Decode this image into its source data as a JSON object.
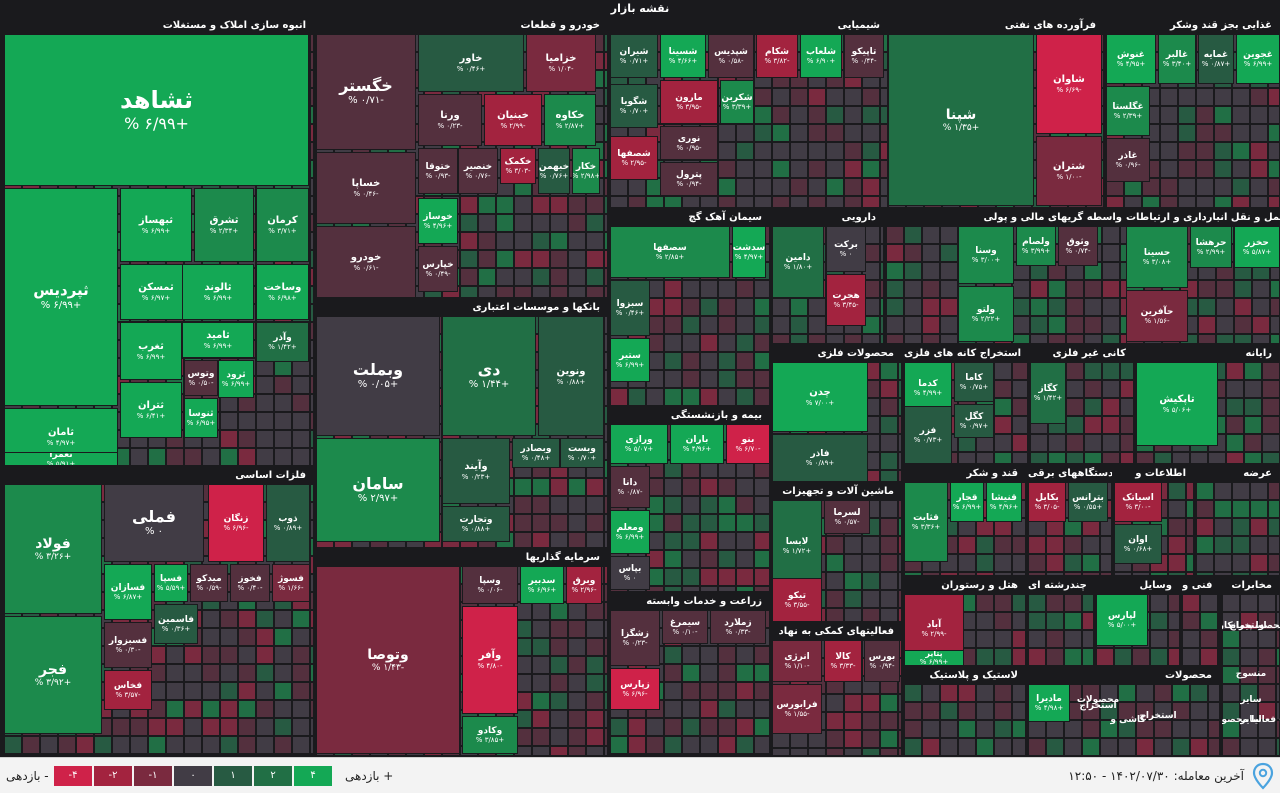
{
  "map_title": "نقشه بازار",
  "colors": {
    "up4": "#14a855",
    "up3": "#1c8a4c",
    "up2": "#216f45",
    "up1": "#275a42",
    "flat": "#413c45",
    "down1": "#54303e",
    "down2": "#7a2a3f",
    "down3": "#a3233f",
    "down4": "#cf2249"
  },
  "chart_data": {
    "type": "treemap",
    "sectors": [
      {
        "name": "انبوه سازی املاک و مستغلات",
        "tiles": [
          {
            "symbol": "ثشاهد",
            "change": "+۶/۹۹ %",
            "pct": 6.99
          },
          {
            "symbol": "ثپردیس",
            "change": "+۶/۹۹ %",
            "pct": 6.99
          },
          {
            "symbol": "ثامان",
            "change": "+۴/۹۷ %",
            "pct": 4.97
          },
          {
            "symbol": "ثعمرا",
            "change": "+۵/۹۱ %",
            "pct": 5.91
          },
          {
            "symbol": "ثبهساز",
            "change": "+۶/۹۹ %",
            "pct": 6.99
          },
          {
            "symbol": "ثشرق",
            "change": "+۲/۳۴ %",
            "pct": 2.34
          },
          {
            "symbol": "کرمان",
            "change": "+۳/۷۱ %",
            "pct": 3.71
          },
          {
            "symbol": "ثمسکن",
            "change": "+۶/۹۷ %",
            "pct": 6.97
          },
          {
            "symbol": "ثالوند",
            "change": "+۶/۹۹ %",
            "pct": 6.99
          },
          {
            "symbol": "وساخت",
            "change": "+۶/۹۸ %",
            "pct": 6.98
          },
          {
            "symbol": "ثغرب",
            "change": "+۶/۹۹ %",
            "pct": 6.99
          },
          {
            "symbol": "ثامید",
            "change": "+۶/۹۹ %",
            "pct": 6.99
          },
          {
            "symbol": "وآذر",
            "change": "+۱/۴۲ %",
            "pct": 1.42
          },
          {
            "symbol": "وتوس",
            "change": "-۰/۵۰ %",
            "pct": -0.5
          },
          {
            "symbol": "ثرود",
            "change": "+۶/۹۹ %",
            "pct": 6.99
          },
          {
            "symbol": "ثتران",
            "change": "+۶/۴۱ %",
            "pct": 6.41
          },
          {
            "symbol": "ثنوسا",
            "change": "+۶/۹۵ %",
            "pct": 6.95
          }
        ]
      },
      {
        "name": "فلزات اساسی",
        "tiles": [
          {
            "symbol": "فولاد",
            "change": "+۳/۲۶ %",
            "pct": 3.26
          },
          {
            "symbol": "فجر",
            "change": "+۳/۹۲ %",
            "pct": 3.92
          },
          {
            "symbol": "فملی",
            "change": "۰ %",
            "pct": 0
          },
          {
            "symbol": "زنگان",
            "change": "-۶/۹۶ %",
            "pct": -6.96
          },
          {
            "symbol": "ذوب",
            "change": "+۰/۸۹ %",
            "pct": 0.89
          },
          {
            "symbol": "فسازان",
            "change": "+۶/۸۷ %",
            "pct": 6.87
          },
          {
            "symbol": "فسپا",
            "change": "+۵/۵۹ %",
            "pct": 5.59
          },
          {
            "symbol": "میدکو",
            "change": "-۰/۵۹ %",
            "pct": -0.59
          },
          {
            "symbol": "فخوز",
            "change": "-۰/۴۰ %",
            "pct": -0.4
          },
          {
            "symbol": "فسوژ",
            "change": "-۱/۶۶ %",
            "pct": -1.66
          },
          {
            "symbol": "فسبزوار",
            "change": "-۰/۳۰ %",
            "pct": -0.3
          },
          {
            "symbol": "فاسمین",
            "change": "+۰/۳۶ %",
            "pct": 0.36
          },
          {
            "symbol": "فخاس",
            "change": "-۳/۵۷ %",
            "pct": -3.57
          }
        ]
      },
      {
        "name": "خودرو و قطعات",
        "tiles": [
          {
            "symbol": "خگستر",
            "change": "-۰/۷۱ %",
            "pct": -0.71
          },
          {
            "symbol": "خاور",
            "change": "+۰/۴۶ %",
            "pct": 0.46
          },
          {
            "symbol": "خزامیا",
            "change": "-۱/۰۴ %",
            "pct": -1.04
          },
          {
            "symbol": "ورنا",
            "change": "-۰/۲۳ %",
            "pct": -0.23
          },
          {
            "symbol": "خبنیان",
            "change": "-۲/۹۹ %",
            "pct": -2.99
          },
          {
            "symbol": "خکاوه",
            "change": "+۲/۸۷ %",
            "pct": 2.87
          },
          {
            "symbol": "خساپا",
            "change": "-۰/۴۶ %",
            "pct": -0.46
          },
          {
            "symbol": "ختوقا",
            "change": "-۰/۹۳ %",
            "pct": -0.93
          },
          {
            "symbol": "خنصیر",
            "change": "-۰/۷۶ %",
            "pct": -0.76
          },
          {
            "symbol": "خکمک",
            "change": "-۳/۰۳ %",
            "pct": -3.03
          },
          {
            "symbol": "خبهمن",
            "change": "+۰/۷۶ %",
            "pct": 0.76
          },
          {
            "symbol": "خکار",
            "change": "+۲/۹۸ %",
            "pct": 2.98
          },
          {
            "symbol": "خوساز",
            "change": "+۴/۹۶ %",
            "pct": 4.96
          },
          {
            "symbol": "خودرو",
            "change": "-۰/۶۱ %",
            "pct": -0.61
          },
          {
            "symbol": "خپارس",
            "change": "-۰/۴۹ %",
            "pct": -0.49
          }
        ]
      },
      {
        "name": "بانکها و موسسات اعتباری",
        "tiles": [
          {
            "symbol": "وبملت",
            "change": "+۰/۰۵ %",
            "pct": 0.05
          },
          {
            "symbol": "دی",
            "change": "+۱/۴۴ %",
            "pct": 1.44
          },
          {
            "symbol": "ونوین",
            "change": "+۰/۸۸ %",
            "pct": 0.88
          },
          {
            "symbol": "سامان",
            "change": "+۲/۹۷ %",
            "pct": 2.97
          },
          {
            "symbol": "وآیند",
            "change": "+۰/۲۳ %",
            "pct": 0.23
          },
          {
            "symbol": "وبصادر",
            "change": "+۰/۴۸ %",
            "pct": 0.48
          },
          {
            "symbol": "وبست",
            "change": "+۰/۷۰ %",
            "pct": 0.7
          },
          {
            "symbol": "وتجارت",
            "change": "+۰/۸۸ %",
            "pct": 0.88
          }
        ]
      },
      {
        "name": "سرمایه گذاریها",
        "tiles": [
          {
            "symbol": "وتوصا",
            "change": "-۱/۴۳ %",
            "pct": -1.43
          },
          {
            "symbol": "وسپا",
            "change": "-۰/۰۶ %",
            "pct": -0.06
          },
          {
            "symbol": "سدبیر",
            "change": "+۶/۹۶ %",
            "pct": 6.96
          },
          {
            "symbol": "وبرق",
            "change": "-۲/۹۶ %",
            "pct": -2.96
          },
          {
            "symbol": "وآفر",
            "change": "-۴/۸۰ %",
            "pct": -4.8
          },
          {
            "symbol": "وکادو",
            "change": "+۳/۸۵ %",
            "pct": 3.85
          }
        ]
      },
      {
        "name": "شیمیایی",
        "tiles": [
          {
            "symbol": "شیران",
            "change": "+۰/۷۱ %",
            "pct": 0.71
          },
          {
            "symbol": "شسینا",
            "change": "+۴/۶۶ %",
            "pct": 4.66
          },
          {
            "symbol": "شپدیس",
            "change": "-۰/۵۸ %",
            "pct": -0.58
          },
          {
            "symbol": "شکام",
            "change": "-۳/۸۲ %",
            "pct": -3.82
          },
          {
            "symbol": "شلعاب",
            "change": "+۶/۹۰ %",
            "pct": 6.9
          },
          {
            "symbol": "تاپیکو",
            "change": "-۰/۴۴ %",
            "pct": -0.44
          },
          {
            "symbol": "مارون",
            "change": "-۳/۹۵ %",
            "pct": -3.95
          },
          {
            "symbol": "شکربن",
            "change": "+۳/۳۹ %",
            "pct": 3.39
          },
          {
            "symbol": "شگویا",
            "change": "+۰/۷۰ %",
            "pct": 0.7
          },
          {
            "symbol": "نوری",
            "change": "-۰/۹۵ %",
            "pct": -0.95
          },
          {
            "symbol": "شصفها",
            "change": "-۲/۹۵ %",
            "pct": -2.95
          },
          {
            "symbol": "پترول",
            "change": "-۰/۹۴ %",
            "pct": -0.94
          }
        ]
      },
      {
        "name": "فرآورده های نفتی",
        "tiles": [
          {
            "symbol": "شپنا",
            "change": "+۱/۳۵ %",
            "pct": 1.35
          },
          {
            "symbol": "شاوان",
            "change": "-۶/۶۹ %",
            "pct": -6.69
          },
          {
            "symbol": "شبندر",
            "change": "-۰/۵۶ %",
            "pct": -0.56
          },
          {
            "symbol": "شتران",
            "change": "-۱/۰۰ %",
            "pct": -1
          },
          {
            "symbol": "شبریز",
            "change": "۰ %",
            "pct": 0
          }
        ]
      },
      {
        "name": "غذایی بجز قند وشکر",
        "tiles": [
          {
            "symbol": "غنوش",
            "change": "+۴/۹۵ %",
            "pct": 4.95
          },
          {
            "symbol": "غالبر",
            "change": "+۳/۴۰ %",
            "pct": 3.4
          },
          {
            "symbol": "غمایه",
            "change": "+۰/۸۷ %",
            "pct": 0.87
          },
          {
            "symbol": "غجوین",
            "change": "+۶/۹۹ %",
            "pct": 6.99
          },
          {
            "symbol": "غگلستا",
            "change": "+۲/۳۹ %",
            "pct": 2.39
          },
          {
            "symbol": "غاذر",
            "change": "-۰/۹۶ %",
            "pct": -0.96
          }
        ]
      },
      {
        "name": "سیمان آهک گچ",
        "tiles": [
          {
            "symbol": "سصفها",
            "change": "+۲/۸۵ %",
            "pct": 2.85
          },
          {
            "symbol": "سدشت",
            "change": "+۴/۹۷ %",
            "pct": 4.97
          },
          {
            "symbol": "سبزوا",
            "change": "+۰/۴۶ %",
            "pct": 0.46
          },
          {
            "symbol": "ستیر",
            "change": "+۶/۹۹ %",
            "pct": 6.99
          }
        ]
      },
      {
        "name": "دارویی",
        "tiles": [
          {
            "symbol": "دامین",
            "change": "+۱/۸۰ %",
            "pct": 1.8
          },
          {
            "symbol": "برکت",
            "change": "۰ %",
            "pct": 0
          },
          {
            "symbol": "هجرت",
            "change": "-۳/۴۵ %",
            "pct": -3.45
          }
        ]
      },
      {
        "name": "واسطه گریهای مالی و پولی",
        "tiles": [
          {
            "symbol": "وسنا",
            "change": "+۳/۰۰ %",
            "pct": 3
          },
          {
            "symbol": "ولصام",
            "change": "+۳/۹۹ %",
            "pct": 3.99
          },
          {
            "symbol": "وثوق",
            "change": "-۰/۷۴ %",
            "pct": -0.74
          },
          {
            "symbol": "ولتو",
            "change": "+۲/۲۲ %",
            "pct": 2.22
          }
        ]
      },
      {
        "name": "حمل و نقل انبارداری و ارتباطات",
        "tiles": [
          {
            "symbol": "حسینا",
            "change": "+۳/۰۸ %",
            "pct": 3.08
          },
          {
            "symbol": "حرهشا",
            "change": "+۲/۹۹ %",
            "pct": 2.99
          },
          {
            "symbol": "حخزر",
            "change": "+۵/۸۷ %",
            "pct": 5.87
          },
          {
            "symbol": "حآفرین",
            "change": "-۱/۵۶ %",
            "pct": -1.56
          }
        ]
      },
      {
        "name": "بیمه و بازنشستگی",
        "tiles": [
          {
            "symbol": "ورازی",
            "change": "+۵/۰۷ %",
            "pct": 5.07
          },
          {
            "symbol": "باران",
            "change": "+۴/۹۶ %",
            "pct": 4.96
          },
          {
            "symbol": "بنو",
            "change": "-۶/۷۰ %",
            "pct": -6.7
          },
          {
            "symbol": "دانا",
            "change": "-۰/۸۷ %",
            "pct": -0.87
          },
          {
            "symbol": "ومعلم",
            "change": "+۶/۹۹ %",
            "pct": 6.99
          },
          {
            "symbol": "بپاس",
            "change": "۰ %",
            "pct": 0
          }
        ]
      },
      {
        "name": "محصولات فلزی",
        "tiles": [
          {
            "symbol": "چدن",
            "change": "+۷/۰۰ %",
            "pct": 7
          },
          {
            "symbol": "فاذر",
            "change": "+۰/۸۹ %",
            "pct": 0.89
          }
        ]
      },
      {
        "name": "استخراج کانه های فلزی",
        "tiles": [
          {
            "symbol": "کدما",
            "change": "+۴/۹۹ %",
            "pct": 4.99
          },
          {
            "symbol": "کاما",
            "change": "+۰/۷۵ %",
            "pct": 0.75
          },
          {
            "symbol": "کگل",
            "change": "+۰/۹۷ %",
            "pct": 0.97
          },
          {
            "symbol": "فزر",
            "change": "+۰/۷۳ %",
            "pct": 0.73
          }
        ]
      },
      {
        "name": "کانی غیر فلزی",
        "tiles": [
          {
            "symbol": "کگاز",
            "change": "+۱/۴۲ %",
            "pct": 1.42
          }
        ]
      },
      {
        "name": "رایانه",
        "tiles": [
          {
            "symbol": "تاپکیش",
            "change": "+۵/۰۶ %",
            "pct": 5.06
          }
        ]
      },
      {
        "name": "زراعت و خدمات وابسته",
        "tiles": [
          {
            "symbol": "زشگزا",
            "change": "-۰/۲۳ %",
            "pct": -0.23
          },
          {
            "symbol": "سیمرغ",
            "change": "-۰/۱۰ %",
            "pct": -0.1
          },
          {
            "symbol": "زملارد",
            "change": "-۰/۳۳ %",
            "pct": -0.33
          },
          {
            "symbol": "زپارس",
            "change": "-۶/۹۶ %",
            "pct": -6.96
          }
        ]
      },
      {
        "name": "ماشین آلات و تجهیزات",
        "tiles": [
          {
            "symbol": "لابسا",
            "change": "+۱/۷۲ %",
            "pct": 1.72
          },
          {
            "symbol": "لسرما",
            "change": "-۰/۵۷ %",
            "pct": -0.57
          },
          {
            "symbol": "تیکو",
            "change": "-۳/۵۵ %",
            "pct": -3.55
          }
        ]
      },
      {
        "name": "فعالیتهای کمکی به نهاد",
        "tiles": [
          {
            "symbol": "انرژی",
            "change": "-۱/۱۰ %",
            "pct": -1.1
          },
          {
            "symbol": "کالا",
            "change": "-۳/۳۳ %",
            "pct": -3.33
          },
          {
            "symbol": "بورس",
            "change": "-۰/۹۴ %",
            "pct": -0.94
          },
          {
            "symbol": "فرابورس",
            "change": "-۱/۵۵ %",
            "pct": -1.55
          }
        ]
      },
      {
        "name": "قند و شکر",
        "tiles": [
          {
            "symbol": "قثابت",
            "change": "+۳/۳۶ %",
            "pct": 3.36
          },
          {
            "symbol": "قجار",
            "change": "+۶/۹۹ %",
            "pct": 6.99
          },
          {
            "symbol": "قنیشا",
            "change": "+۴/۹۶ %",
            "pct": 4.96
          }
        ]
      },
      {
        "name": "دستگاههای برقی",
        "tiles": [
          {
            "symbol": "بکابل",
            "change": "-۳/۰۵ %",
            "pct": -3.05
          },
          {
            "symbol": "بترانس",
            "change": "+۰/۵۵ %",
            "pct": 0.55
          }
        ]
      },
      {
        "name": "اطلاعات و",
        "tiles": [
          {
            "symbol": "اسیاتک",
            "change": "-۳/۰۰ %",
            "pct": -3
          },
          {
            "symbol": "اوان",
            "change": "+۰/۶۸ %",
            "pct": 0.68
          }
        ]
      },
      {
        "name": "عرضه",
        "tiles": []
      },
      {
        "name": "هتل و رستوران",
        "tiles": [
          {
            "symbol": "آباد",
            "change": "-۲/۹۹ %",
            "pct": -2.99
          },
          {
            "symbol": "پتایر",
            "change": "+۶/۹۹ %",
            "pct": 6.99
          }
        ]
      },
      {
        "name": "چندرشته ای",
        "tiles": []
      },
      {
        "name": "وسایل",
        "tiles": [
          {
            "symbol": "لپارس",
            "change": "+۵/۰۰ %",
            "pct": 5
          }
        ]
      },
      {
        "name": "فنی و",
        "tiles": []
      },
      {
        "name": "مخابرات",
        "tiles": [
          {
            "symbol": "استخراج",
            "change": "",
            "pct": 0
          },
          {
            "symbol": "محصوا پیمانکار",
            "change": "",
            "pct": 0
          },
          {
            "symbol": "منسوج",
            "change": "",
            "pct": 0
          },
          {
            "symbol": "سایر",
            "change": "",
            "pct": 0
          },
          {
            "symbol": "ج فعالیا محصوا",
            "change": "",
            "pct": 0
          },
          {
            "symbol": "سایر",
            "change": "",
            "pct": 0
          }
        ]
      },
      {
        "name": "لاستیک و پلاستیک",
        "tiles": []
      },
      {
        "name": "محصولات",
        "tiles": [
          {
            "symbol": "مادیرا",
            "change": "+۴/۹۸ %",
            "pct": 4.98
          },
          {
            "symbol": "محصولات",
            "change": "",
            "pct": 0
          },
          {
            "symbol": "کاشی و",
            "change": "",
            "pct": 0
          },
          {
            "symbol": "استخراج",
            "change": "",
            "pct": 0
          },
          {
            "symbol": "استخراج",
            "change": "",
            "pct": 0
          }
        ]
      }
    ]
  },
  "legend": {
    "prefix": "بازدهی -",
    "suffix": "بازدهی +",
    "levels": [
      "-۴",
      "-۲",
      "-۱",
      "۰",
      "۱",
      "۲",
      "۴"
    ]
  },
  "update": {
    "label": "آخرین معامله:",
    "value": "۱۴۰۲/۰۷/۳۰ - ۱۲:۵۰"
  }
}
